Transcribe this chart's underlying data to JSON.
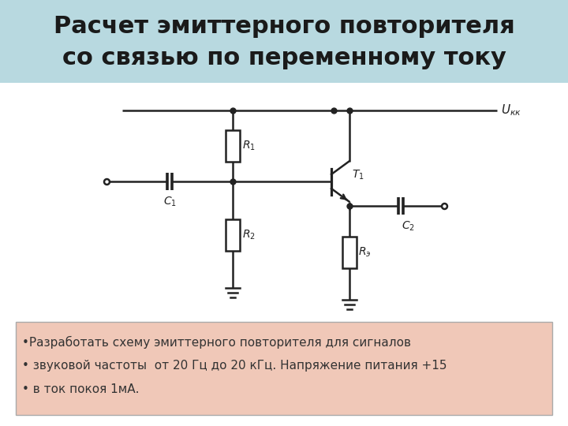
{
  "title_line1": "Расчет эмиттерного повторителя",
  "title_line2": "со связью по переменному току",
  "title_bg": "#b8d9e0",
  "title_fontsize": 22,
  "title_color": "#1a1a1a",
  "circuit_color": "#222222",
  "label_R1": "$R_1$",
  "label_R2": "$R_2$",
  "label_Re": "$R_э$",
  "label_C1": "$C_1$",
  "label_C2": "$C_2$",
  "label_T1": "$T_1$",
  "label_Ukk": "$U_{кк}$",
  "text_box_bg": "#f0c8b8",
  "text_box_border": "#aaaaaa",
  "text_line1": "•Разработать схему эмиттерного повторителя для сигналов",
  "text_line2": "• звуковой частоты  от 20 Гц до 20 кГц. Напряжение питания +15",
  "text_line3": "• в ток покоя 1мА.",
  "text_fontsize": 11,
  "bg_color": "#ffffff"
}
